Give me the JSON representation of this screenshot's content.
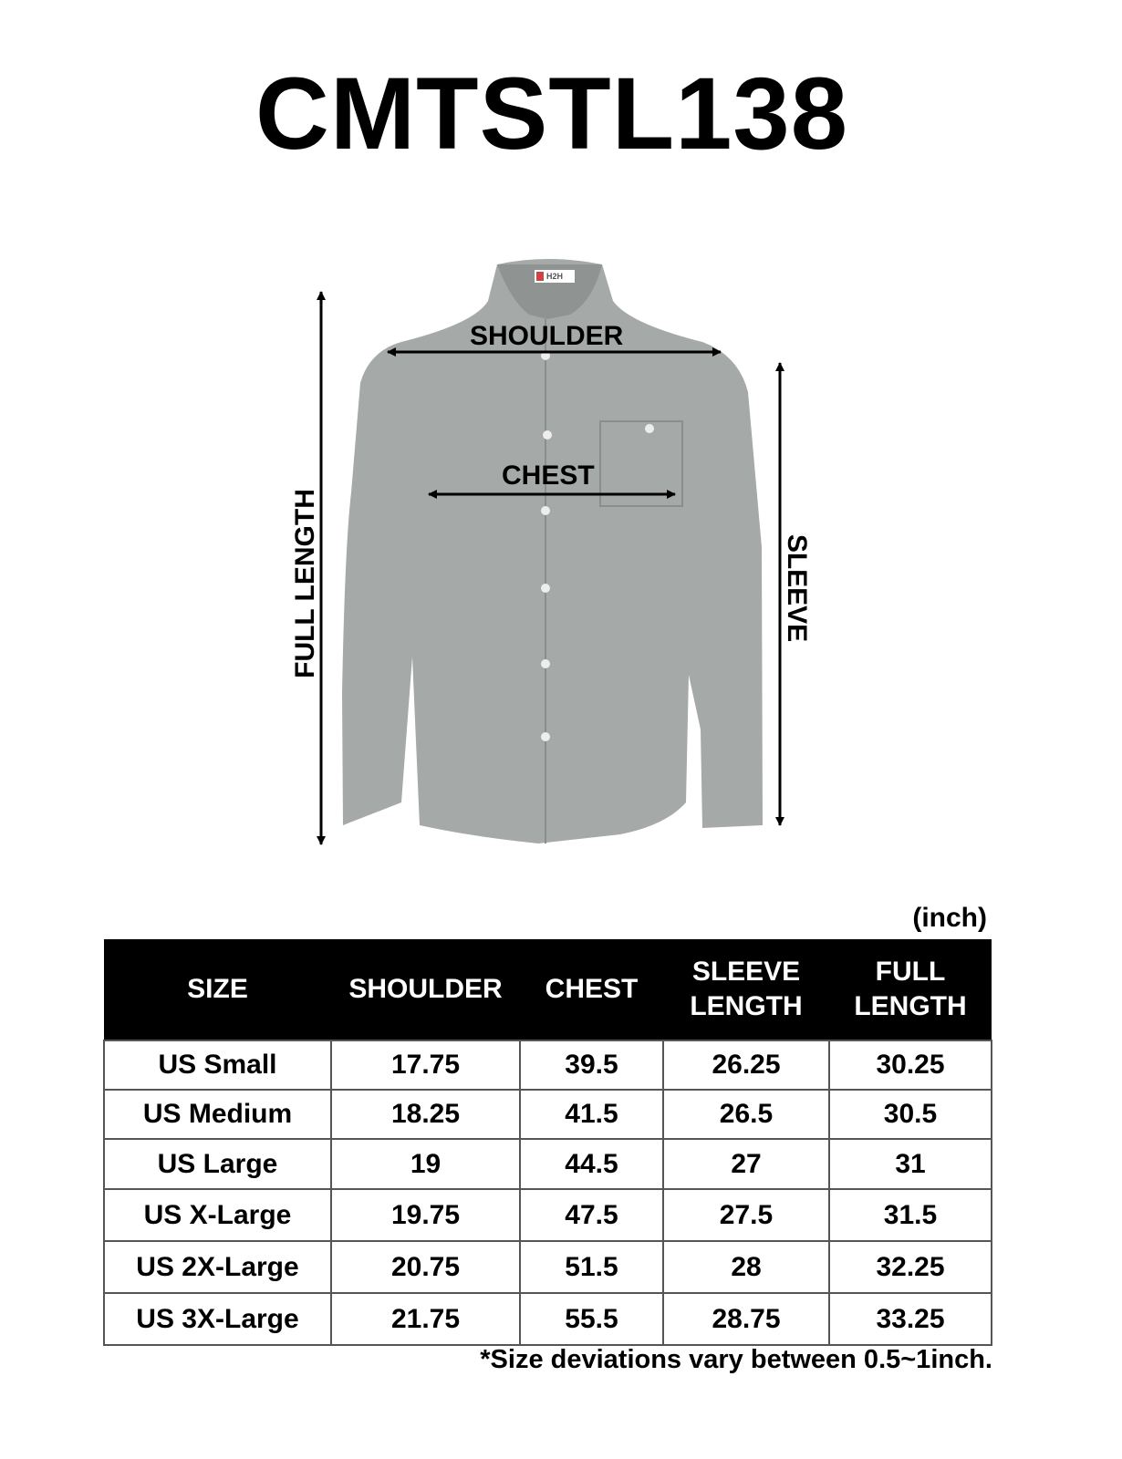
{
  "title": "CMTSTL138",
  "figure": {
    "shirt_color": "#a5a9a7",
    "label_text": "H2H",
    "measurements": {
      "shoulder": "SHOULDER",
      "chest": "CHEST",
      "full_length": "FULL LENGTH",
      "sleeve": "SLEEVE"
    }
  },
  "table": {
    "unit": "(inch)",
    "headers": [
      "SIZE",
      "SHOULDER",
      "CHEST",
      "SLEEVE LENGTH",
      "FULL LENGTH"
    ],
    "rows": [
      [
        "US Small",
        "17.75",
        "39.5",
        "26.25",
        "30.25"
      ],
      [
        "US Medium",
        "18.25",
        "41.5",
        "26.5",
        "30.5"
      ],
      [
        "US Large",
        "19",
        "44.5",
        "27",
        "31"
      ],
      [
        "US X-Large",
        "19.75",
        "47.5",
        "27.5",
        "31.5"
      ],
      [
        "US 2X-Large",
        "20.75",
        "51.5",
        "28",
        "32.25"
      ],
      [
        "US 3X-Large",
        "21.75",
        "55.5",
        "28.75",
        "33.25"
      ]
    ]
  },
  "note": "*Size deviations vary between 0.5~1inch."
}
